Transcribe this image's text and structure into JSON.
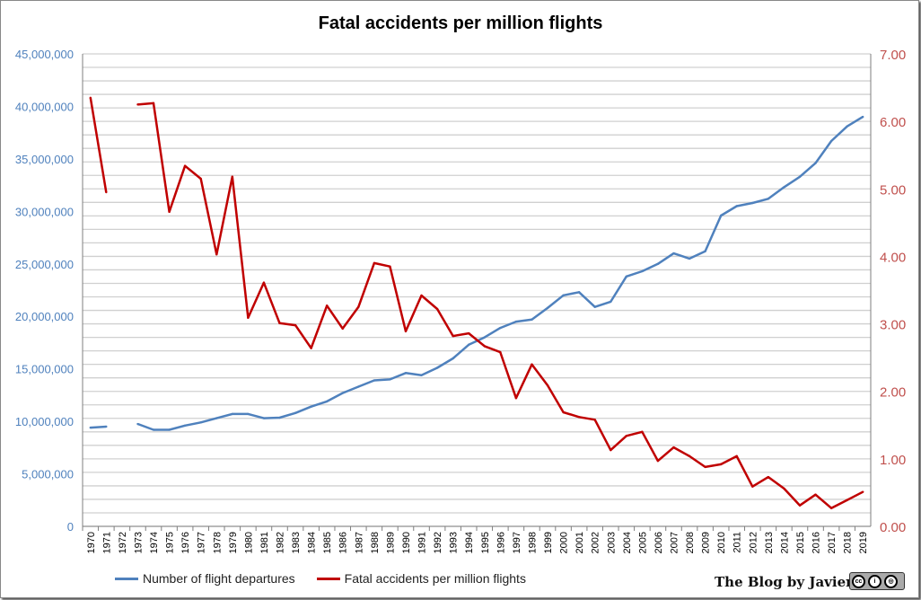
{
  "chart_data": {
    "type": "line",
    "title": "Fatal accidents per million flights",
    "categories": [
      "1970",
      "1971",
      "1972",
      "1973",
      "1974",
      "1975",
      "1976",
      "1977",
      "1978",
      "1979",
      "1980",
      "1981",
      "1982",
      "1983",
      "1984",
      "1985",
      "1986",
      "1987",
      "1988",
      "1989",
      "1990",
      "1991",
      "1992",
      "1993",
      "1994",
      "1995",
      "1996",
      "1997",
      "1998",
      "1999",
      "2000",
      "2001",
      "2002",
      "2003",
      "2004",
      "2005",
      "2006",
      "2007",
      "2008",
      "2009",
      "2010",
      "2011",
      "2012",
      "2013",
      "2014",
      "2015",
      "2016",
      "2017",
      "2018",
      "2019"
    ],
    "series": [
      {
        "name": "Number of flight departures",
        "axis": "left",
        "color": "#4f81bd",
        "values": [
          9400000,
          9500000,
          null,
          9750000,
          9200000,
          9200000,
          9600000,
          9900000,
          10300000,
          10700000,
          10700000,
          10300000,
          10350000,
          10800000,
          11400000,
          11900000,
          12700000,
          13300000,
          13900000,
          14000000,
          14600000,
          14400000,
          15100000,
          16000000,
          17300000,
          18000000,
          18900000,
          19500000,
          19700000,
          20800000,
          22000000,
          22300000,
          20900000,
          21400000,
          23800000,
          24300000,
          25000000,
          26000000,
          25500000,
          26200000,
          29600000,
          30500000,
          30800000,
          31200000,
          32300000,
          33300000,
          34600000,
          36700000,
          38100000,
          39000000
        ]
      },
      {
        "name": "Fatal accidents per million flights",
        "axis": "right",
        "color": "#c00000",
        "values": [
          6.35,
          4.95,
          null,
          6.25,
          6.27,
          4.66,
          5.34,
          5.15,
          4.03,
          5.18,
          3.09,
          3.61,
          3.01,
          2.98,
          2.64,
          3.27,
          2.93,
          3.25,
          3.9,
          3.85,
          2.89,
          3.42,
          3.22,
          2.82,
          2.86,
          2.67,
          2.58,
          1.9,
          2.4,
          2.09,
          1.69,
          1.62,
          1.58,
          1.13,
          1.34,
          1.4,
          0.97,
          1.17,
          1.04,
          0.88,
          0.92,
          1.04,
          0.59,
          0.73,
          0.56,
          0.31,
          0.47,
          0.27,
          0.39,
          0.51
        ]
      }
    ],
    "left_axis": {
      "range": [
        0,
        45000000
      ],
      "ticks": [
        "0",
        "5,000,000",
        "10,000,000",
        "15,000,000",
        "20,000,000",
        "25,000,000",
        "30,000,000",
        "35,000,000",
        "40,000,000",
        "45,000,000"
      ],
      "color": "#4f81bd"
    },
    "right_axis": {
      "range": [
        0,
        7
      ],
      "ticks": [
        "0.00",
        "1.00",
        "2.00",
        "3.00",
        "4.00",
        "5.00",
        "6.00",
        "7.00"
      ],
      "color": "#c0504d"
    },
    "grid": true,
    "legend": "bottom"
  },
  "watermark": {
    "text": "The Blog by Javier",
    "license": "cc by sa"
  }
}
